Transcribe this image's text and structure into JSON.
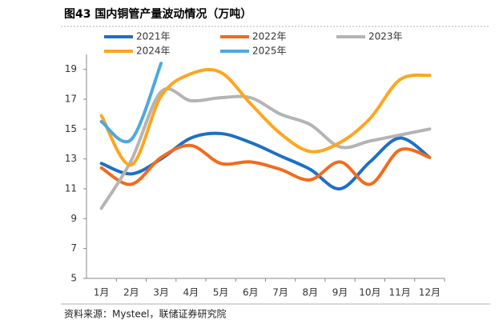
{
  "chart_data": {
    "type": "line",
    "title": "图43 国内铜管产量波动情况（万吨）",
    "source": "资料来源：Mysteel，联储证券研究院",
    "categories": [
      "1月",
      "2月",
      "3月",
      "4月",
      "5月",
      "6月",
      "7月",
      "8月",
      "9月",
      "10月",
      "11月",
      "12月"
    ],
    "series": [
      {
        "name": "2021年",
        "color": "#1f6fc5",
        "values": [
          12.7,
          12.0,
          13.0,
          14.4,
          14.7,
          14.1,
          13.2,
          12.3,
          11.0,
          12.8,
          14.4,
          13.1
        ]
      },
      {
        "name": "2022年",
        "color": "#f26b1d",
        "values": [
          12.4,
          11.3,
          13.1,
          13.9,
          12.7,
          12.8,
          12.3,
          11.6,
          12.8,
          11.3,
          13.6,
          13.1
        ]
      },
      {
        "name": "2023年",
        "color": "#b4b4b4",
        "values": [
          9.7,
          12.9,
          17.5,
          16.9,
          17.1,
          17.1,
          16.0,
          15.3,
          13.8,
          14.2,
          14.6,
          15.0
        ]
      },
      {
        "name": "2024年",
        "color": "#ffa51f",
        "values": [
          15.9,
          12.6,
          17.2,
          18.7,
          18.8,
          16.7,
          14.7,
          13.5,
          14.1,
          15.7,
          18.3,
          18.6
        ]
      },
      {
        "name": "2025年",
        "color": "#4ea8de",
        "values": [
          15.5,
          14.3,
          19.4,
          null,
          null,
          null,
          null,
          null,
          null,
          null,
          null,
          null
        ]
      }
    ],
    "ylim": [
      5,
      20
    ],
    "yticks": [
      5,
      7,
      9,
      11,
      13,
      15,
      17,
      19
    ],
    "grid": false
  }
}
